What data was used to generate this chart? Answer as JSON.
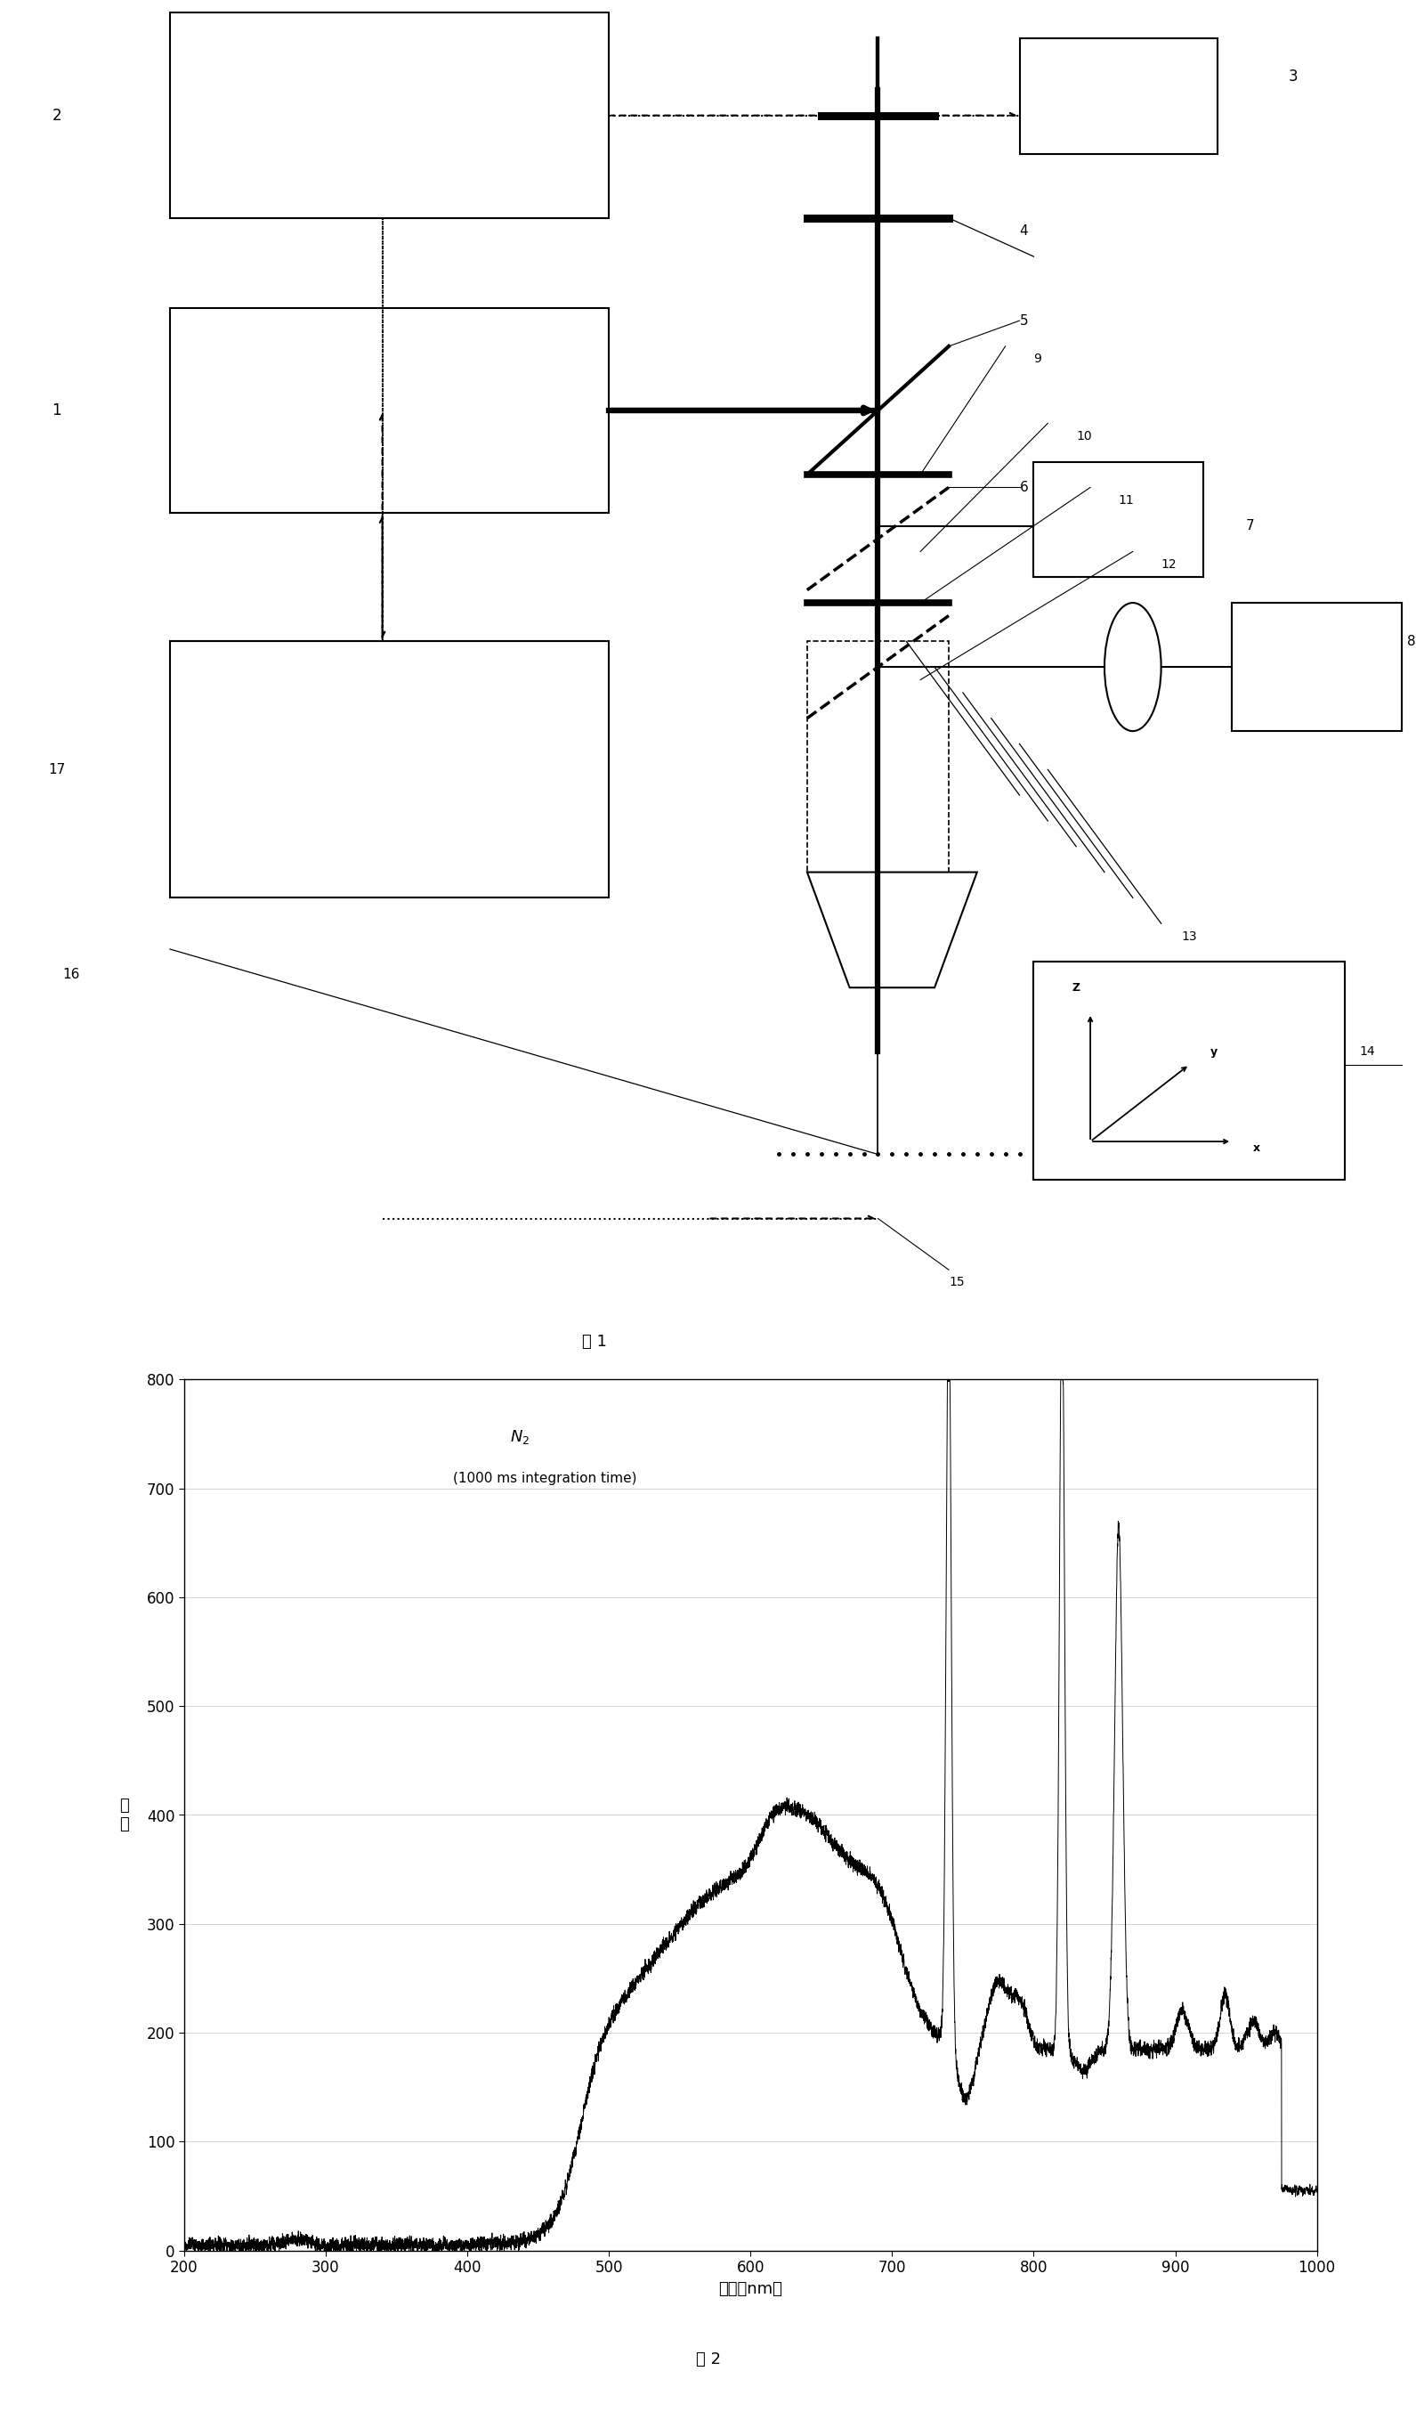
{
  "fig1_label": "图 1",
  "fig2_label": "图 2",
  "graph_xlabel": "波长（nm）",
  "graph_ylabel": "强\n度",
  "graph_xlim": [
    200,
    1000
  ],
  "graph_ylim": [
    0,
    800
  ],
  "graph_yticks": [
    0,
    100,
    200,
    300,
    400,
    500,
    600,
    700,
    800
  ],
  "graph_xticks": [
    200,
    300,
    400,
    500,
    600,
    700,
    800,
    900,
    1000
  ],
  "grid_color": "#cccccc",
  "line_color": "#000000",
  "background_color": "#ffffff",
  "N2_annotation": "N",
  "N2_sub": "2",
  "integration_text": "(1000 ms integration time)"
}
